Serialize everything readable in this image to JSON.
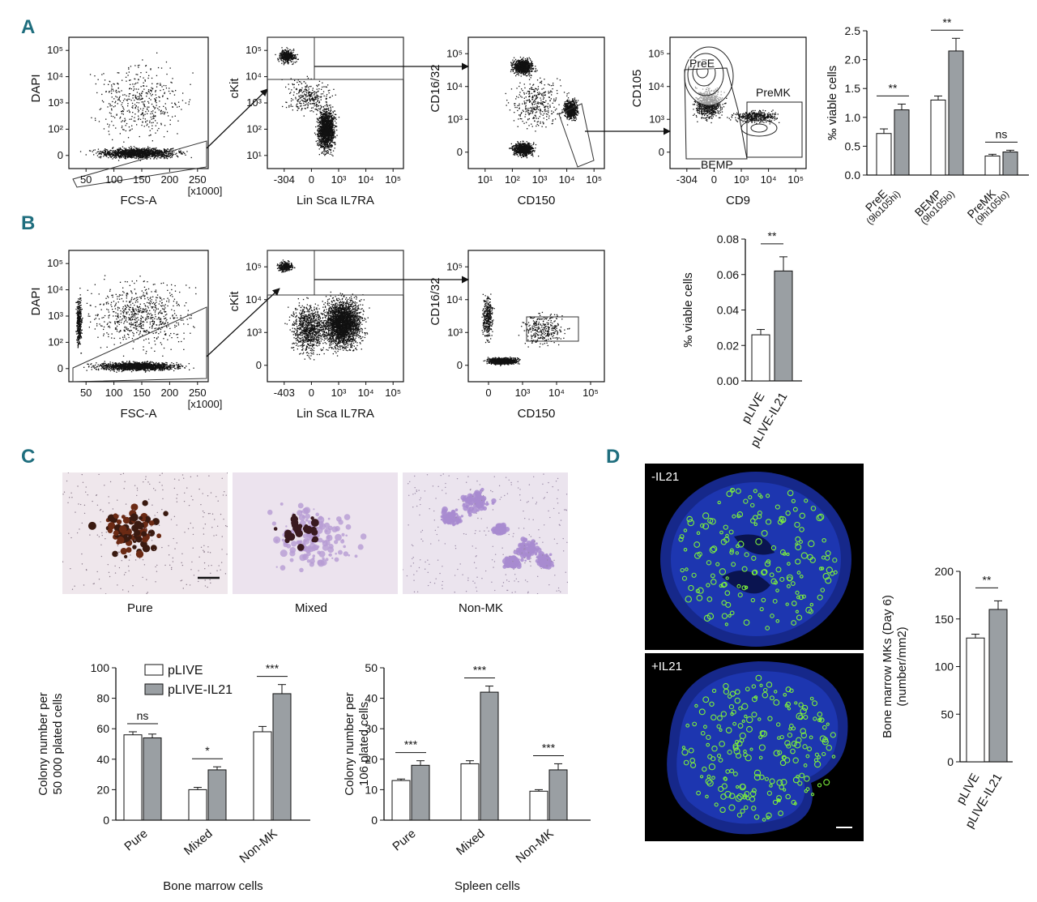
{
  "panels": {
    "a": "A",
    "b": "B",
    "c": "C",
    "d": "D"
  },
  "flow": {
    "a": {
      "p1": {
        "y": "DAPI",
        "x": "FCS-A",
        "x_ticks": [
          "50",
          "100",
          "150",
          "200",
          "250"
        ],
        "x_unit": "[x1000]",
        "y_ticks": [
          "0",
          "10²",
          "10³",
          "10⁴",
          "10⁵"
        ]
      },
      "p2": {
        "y": "cKit",
        "x": "Lin Sca IL7RA",
        "x_ticks": [
          "-304",
          "0",
          "10³",
          "10⁴",
          "10⁵"
        ],
        "y_ticks": [
          "10¹",
          "10²",
          "10³",
          "10⁴",
          "10⁵"
        ]
      },
      "p3": {
        "y": "CD16/32",
        "x": "CD150",
        "x_ticks": [
          "10¹",
          "10²",
          "10³",
          "10⁴",
          "10⁵"
        ],
        "y_ticks": [
          "0",
          "10³",
          "10⁴",
          "10⁵"
        ]
      },
      "p4": {
        "y": "CD105",
        "x": "CD9",
        "x_ticks": [
          "-304",
          "0",
          "10³",
          "10⁴",
          "10⁵"
        ],
        "y_ticks": [
          "0",
          "10³",
          "10⁴",
          "10⁵"
        ],
        "gates": [
          "PreE",
          "PreMK",
          "BEMP"
        ]
      }
    },
    "b": {
      "p1": {
        "y": "DAPI",
        "x": "FSC-A",
        "x_ticks": [
          "50",
          "100",
          "150",
          "200",
          "250"
        ],
        "x_unit": "[x1000]",
        "y_ticks": [
          "0",
          "10²",
          "10³",
          "10⁴",
          "10⁵"
        ]
      },
      "p2": {
        "y": "cKit",
        "x": "Lin Sca IL7RA",
        "x_ticks": [
          "-403",
          "0",
          "10³",
          "10⁴",
          "10⁵"
        ],
        "y_ticks": [
          "0",
          "10³",
          "10⁴",
          "10⁵"
        ]
      },
      "p3": {
        "y": "CD16/32",
        "x": "CD150",
        "x_ticks": [
          "0",
          "10³",
          "10⁴",
          "10⁵"
        ],
        "y_ticks": [
          "0",
          "10³",
          "10⁴",
          "10⁵"
        ]
      }
    }
  },
  "images": {
    "c_captions": [
      "Pure",
      "Mixed",
      "Non-MK"
    ],
    "d_labels": [
      "-IL21",
      "+IL21"
    ]
  },
  "colors": {
    "bar_control": "#ffffff",
    "bar_treated": "#9a9fa3",
    "panel_letter": "#1f6e7e"
  },
  "chart_data": [
    {
      "id": "A",
      "type": "bar",
      "ylabel": "‰ viable cells",
      "ylim": [
        0,
        2.5
      ],
      "yticks": [
        "0.0",
        "0.5",
        "1.0",
        "1.5",
        "2.0",
        "2.5"
      ],
      "categories": [
        "PreE",
        "BEMP",
        "PreMK"
      ],
      "category_subs": [
        "(9lo105hi)",
        "(9lo105lo)",
        "(9hi105lo)"
      ],
      "series": [
        {
          "name": "pLIVE",
          "values": [
            0.72,
            1.3,
            0.33
          ],
          "errors": [
            0.08,
            0.07,
            0.03
          ]
        },
        {
          "name": "pLIVE-IL21",
          "values": [
            1.13,
            2.15,
            0.4
          ],
          "errors": [
            0.1,
            0.22,
            0.03
          ]
        }
      ],
      "significance": [
        "**",
        "**",
        "ns"
      ]
    },
    {
      "id": "B",
      "type": "bar",
      "ylabel": "‰ viable cells",
      "ylim": [
        0,
        0.08
      ],
      "yticks": [
        "0.00",
        "0.02",
        "0.04",
        "0.06",
        "0.08"
      ],
      "categories": [
        "pLIVE",
        "pLIVE-IL21"
      ],
      "values": [
        0.026,
        0.062
      ],
      "errors": [
        0.003,
        0.008
      ],
      "significance": [
        "**"
      ]
    },
    {
      "id": "C-bone-marrow",
      "type": "bar",
      "ylabel": "Colony number per 50 000 plated cells",
      "xlabel": "Bone marrow cells",
      "ylim": [
        0,
        100
      ],
      "yticks": [
        "0",
        "20",
        "40",
        "60",
        "80",
        "100"
      ],
      "categories": [
        "Pure",
        "Mixed",
        "Non-MK"
      ],
      "series": [
        {
          "name": "pLIVE",
          "values": [
            56,
            20,
            58
          ],
          "errors": [
            2,
            1.5,
            3.5
          ]
        },
        {
          "name": "pLIVE-IL21",
          "values": [
            54,
            33,
            83
          ],
          "errors": [
            2.5,
            2,
            6
          ]
        }
      ],
      "significance": [
        "ns",
        "*",
        "***"
      ],
      "legend": [
        "pLIVE",
        "pLIVE-IL21"
      ]
    },
    {
      "id": "C-spleen",
      "type": "bar",
      "ylabel": "Colony number per 106 plated cells",
      "xlabel": "Spleen cells",
      "ylim": [
        0,
        50
      ],
      "yticks": [
        "0",
        "10",
        "20",
        "30",
        "40",
        "50"
      ],
      "categories": [
        "Pure",
        "Mixed",
        "Non-MK"
      ],
      "series": [
        {
          "name": "pLIVE",
          "values": [
            13,
            18.5,
            9.5
          ],
          "errors": [
            0.5,
            1,
            0.5
          ]
        },
        {
          "name": "pLIVE-IL21",
          "values": [
            18,
            42,
            16.5
          ],
          "errors": [
            1.5,
            2,
            2
          ]
        }
      ],
      "significance": [
        "***",
        "***",
        "***"
      ]
    },
    {
      "id": "D",
      "type": "bar",
      "ylabel": "Bone marrow MKs (Day 6) (number/mm2)",
      "ylim": [
        0,
        200
      ],
      "yticks": [
        "0",
        "50",
        "100",
        "150",
        "200"
      ],
      "categories": [
        "pLIVE",
        "pLIVE-IL21"
      ],
      "values": [
        130,
        160
      ],
      "errors": [
        4,
        9
      ],
      "significance": [
        "**"
      ]
    }
  ]
}
